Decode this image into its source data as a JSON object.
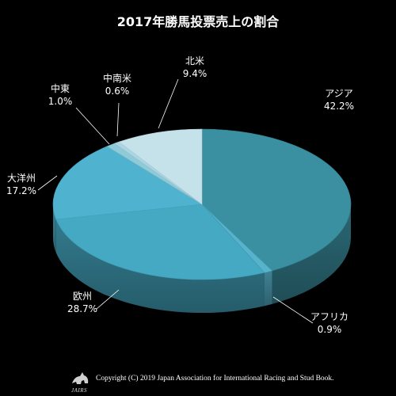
{
  "chart_data": {
    "type": "pie",
    "title": "2017年勝馬投票売上の割合",
    "slices": [
      {
        "label": "アジア",
        "value": 42.2,
        "value_text": "42.2%",
        "color": "#3A8FA0"
      },
      {
        "label": "アフリカ",
        "value": 0.9,
        "value_text": "0.9%",
        "color": "#57B3CC"
      },
      {
        "label": "欧州",
        "value": 28.7,
        "value_text": "28.7%",
        "color": "#45A9C4"
      },
      {
        "label": "大洋州",
        "value": 17.2,
        "value_text": "17.2%",
        "color": "#4FB3D0"
      },
      {
        "label": "中東",
        "value": 1.0,
        "value_text": "1.0%",
        "color": "#8ECAD8"
      },
      {
        "label": "中南米",
        "value": 0.6,
        "value_text": "0.6%",
        "color": "#A9D6E2"
      },
      {
        "label": "北米",
        "value": 9.4,
        "value_text": "9.4%",
        "color": "#C5E1EA"
      }
    ],
    "colors": {
      "background": "#000000",
      "leader_line": "#ffffff"
    }
  },
  "footer": {
    "copyright": "Copyright (C) 2019 Japan Association for International Racing and Stud Book.",
    "logo_text": "JAIRS"
  }
}
